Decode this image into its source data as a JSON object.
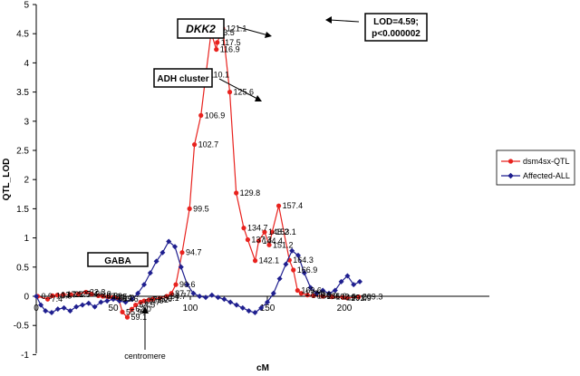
{
  "chart_data": {
    "type": "line",
    "xlabel": "cM",
    "ylabel": "QTL_LOD",
    "xlim": [
      0,
      250
    ],
    "ylim": [
      -1,
      5
    ],
    "x_ticks": [
      0,
      50,
      100,
      150,
      200
    ],
    "y_ticks": [
      -1,
      -0.5,
      0,
      0.5,
      1,
      1.5,
      2,
      2.5,
      3,
      3.5,
      4,
      4.5,
      5
    ],
    "legend_position": "right",
    "series": [
      {
        "name": "dsm4sx-QTL",
        "color": "#e8221e",
        "marker": "circle",
        "points": [
          {
            "x": 0.9,
            "y": 0.0,
            "label": "0.9"
          },
          {
            "x": 7.4,
            "y": -0.05,
            "label": "7.4"
          },
          {
            "x": 10.5,
            "y": 0.01,
            "label": "10.5"
          },
          {
            "x": 13.7,
            "y": 0.02,
            "label": "13.7"
          },
          {
            "x": 17.5,
            "y": 0.03,
            "label": "17.5"
          },
          {
            "x": 22.5,
            "y": 0.03,
            "label": "22.5"
          },
          {
            "x": 27.4,
            "y": 0.04,
            "label": "27.4"
          },
          {
            "x": 32.3,
            "y": 0.07,
            "label": "32.3"
          },
          {
            "x": 36.0,
            "y": 0.04,
            "label": "36.0"
          },
          {
            "x": 40.3,
            "y": 0.01,
            "label": "40.3"
          },
          {
            "x": 43.2,
            "y": 0.0,
            "label": "43.2"
          },
          {
            "x": 46.5,
            "y": -0.01,
            "label": "46.5"
          },
          {
            "x": 49.4,
            "y": -0.02,
            "label": "49.4"
          },
          {
            "x": 51.2,
            "y": -0.03,
            "label": "51.2"
          },
          {
            "x": 53.6,
            "y": -0.05,
            "label": "53.6"
          },
          {
            "x": 55.9,
            "y": -0.27,
            "label": "55.9"
          },
          {
            "x": 59.1,
            "y": -0.36,
            "label": "59.1"
          },
          {
            "x": 62.0,
            "y": -0.22,
            "label": "62.0"
          },
          {
            "x": 64.5,
            "y": -0.15,
            "label": "64.5"
          },
          {
            "x": 67.7,
            "y": -0.1,
            "label": "67.7"
          },
          {
            "x": 70.0,
            "y": -0.08,
            "label": "70.0"
          },
          {
            "x": 73.2,
            "y": -0.06,
            "label": "73.2"
          },
          {
            "x": 75.6,
            "y": -0.05,
            "label": "75.6"
          },
          {
            "x": 80.1,
            "y": -0.03,
            "label": "80.1"
          },
          {
            "x": 84.7,
            "y": 0.0,
            "label": "84.7"
          },
          {
            "x": 87.7,
            "y": 0.05,
            "label": "87.7"
          },
          {
            "x": 90.6,
            "y": 0.2,
            "label": "90.6"
          },
          {
            "x": 94.7,
            "y": 0.75,
            "label": "94.7"
          },
          {
            "x": 99.5,
            "y": 1.5,
            "label": "99.5"
          },
          {
            "x": 102.7,
            "y": 2.6,
            "label": "102.7"
          },
          {
            "x": 106.9,
            "y": 3.1,
            "label": "106.9"
          },
          {
            "x": 110.1,
            "y": 3.8,
            "label": "110.1"
          },
          {
            "x": 113.5,
            "y": 4.52,
            "label": "113.5"
          },
          {
            "x": 116.9,
            "y": 4.23,
            "label": "116.9"
          },
          {
            "x": 117.5,
            "y": 4.35,
            "label": "117.5"
          },
          {
            "x": 121.1,
            "y": 4.59,
            "label": "121.1"
          },
          {
            "x": 125.6,
            "y": 3.5,
            "label": "125.6"
          },
          {
            "x": 129.8,
            "y": 1.77,
            "label": "129.8"
          },
          {
            "x": 134.7,
            "y": 1.17,
            "label": "134.7"
          },
          {
            "x": 137.3,
            "y": 0.97,
            "label": "137.3"
          },
          {
            "x": 142.1,
            "y": 0.61,
            "label": "142.1"
          },
          {
            "x": 144.4,
            "y": 0.95,
            "label": "144.4"
          },
          {
            "x": 148.2,
            "y": 1.1,
            "label": "148.2"
          },
          {
            "x": 151.2,
            "y": 0.88,
            "label": "151.2"
          },
          {
            "x": 153.1,
            "y": 1.1,
            "label": "153.1"
          },
          {
            "x": 157.4,
            "y": 1.55,
            "label": "157.4"
          },
          {
            "x": 164.3,
            "y": 0.62,
            "label": "164.3"
          },
          {
            "x": 166.9,
            "y": 0.45,
            "label": "166.9"
          },
          {
            "x": 169.6,
            "y": 0.1,
            "label": "169.6"
          },
          {
            "x": 172.0,
            "y": 0.05,
            "label": "172.0"
          },
          {
            "x": 176.0,
            "y": 0.02,
            "label": "176.0"
          },
          {
            "x": 180.0,
            "y": 0.01,
            "label": "180.0"
          },
          {
            "x": 186.0,
            "y": 0.0,
            "label": "186.0"
          },
          {
            "x": 192.0,
            "y": -0.01,
            "label": "192.0"
          },
          {
            "x": 199.0,
            "y": -0.02,
            "label": "199.0"
          },
          {
            "x": 201.9,
            "y": -0.03,
            "label": "201.9"
          },
          {
            "x": 209.3,
            "y": -0.01,
            "label": "209.3"
          }
        ]
      },
      {
        "name": "Affected-ALL",
        "color": "#1f1f8f",
        "marker": "diamond",
        "points": [
          {
            "x": 0,
            "y": 0.0
          },
          {
            "x": 3,
            "y": -0.15
          },
          {
            "x": 6,
            "y": -0.25
          },
          {
            "x": 10,
            "y": -0.28
          },
          {
            "x": 14,
            "y": -0.22
          },
          {
            "x": 18,
            "y": -0.2
          },
          {
            "x": 22,
            "y": -0.25
          },
          {
            "x": 26,
            "y": -0.18
          },
          {
            "x": 30,
            "y": -0.15
          },
          {
            "x": 34,
            "y": -0.12
          },
          {
            "x": 38,
            "y": -0.18
          },
          {
            "x": 42,
            "y": -0.1
          },
          {
            "x": 46,
            "y": -0.08
          },
          {
            "x": 50,
            "y": -0.05
          },
          {
            "x": 54,
            "y": -0.08
          },
          {
            "x": 58,
            "y": -0.1
          },
          {
            "x": 62,
            "y": -0.05
          },
          {
            "x": 66,
            "y": 0.05
          },
          {
            "x": 70,
            "y": 0.2
          },
          {
            "x": 74,
            "y": 0.4
          },
          {
            "x": 78,
            "y": 0.6
          },
          {
            "x": 82,
            "y": 0.75
          },
          {
            "x": 86,
            "y": 0.94
          },
          {
            "x": 90,
            "y": 0.85
          },
          {
            "x": 94,
            "y": 0.5
          },
          {
            "x": 98,
            "y": 0.2
          },
          {
            "x": 102,
            "y": 0.05
          },
          {
            "x": 106,
            "y": 0.0
          },
          {
            "x": 110,
            "y": -0.02
          },
          {
            "x": 114,
            "y": 0.02
          },
          {
            "x": 118,
            "y": -0.02
          },
          {
            "x": 122,
            "y": -0.05
          },
          {
            "x": 126,
            "y": -0.1
          },
          {
            "x": 130,
            "y": -0.15
          },
          {
            "x": 134,
            "y": -0.2
          },
          {
            "x": 138,
            "y": -0.25
          },
          {
            "x": 142,
            "y": -0.28
          },
          {
            "x": 146,
            "y": -0.2
          },
          {
            "x": 150,
            "y": -0.1
          },
          {
            "x": 154,
            "y": 0.05
          },
          {
            "x": 158,
            "y": 0.3
          },
          {
            "x": 162,
            "y": 0.55
          },
          {
            "x": 166,
            "y": 0.78
          },
          {
            "x": 170,
            "y": 0.7
          },
          {
            "x": 174,
            "y": 0.4
          },
          {
            "x": 178,
            "y": 0.15
          },
          {
            "x": 182,
            "y": 0.05
          },
          {
            "x": 186,
            "y": 0.1
          },
          {
            "x": 190,
            "y": 0.05
          },
          {
            "x": 194,
            "y": 0.1
          },
          {
            "x": 198,
            "y": 0.25
          },
          {
            "x": 202,
            "y": 0.35
          },
          {
            "x": 206,
            "y": 0.2
          },
          {
            "x": 210,
            "y": 0.25
          }
        ]
      }
    ],
    "annotations": {
      "dkk2": "DKK2",
      "lod_line1": "LOD=4.59;",
      "lod_line2": "p<0.000002",
      "adh": "ADH cluster",
      "gaba": "GABA",
      "centromere": "centromere"
    }
  }
}
